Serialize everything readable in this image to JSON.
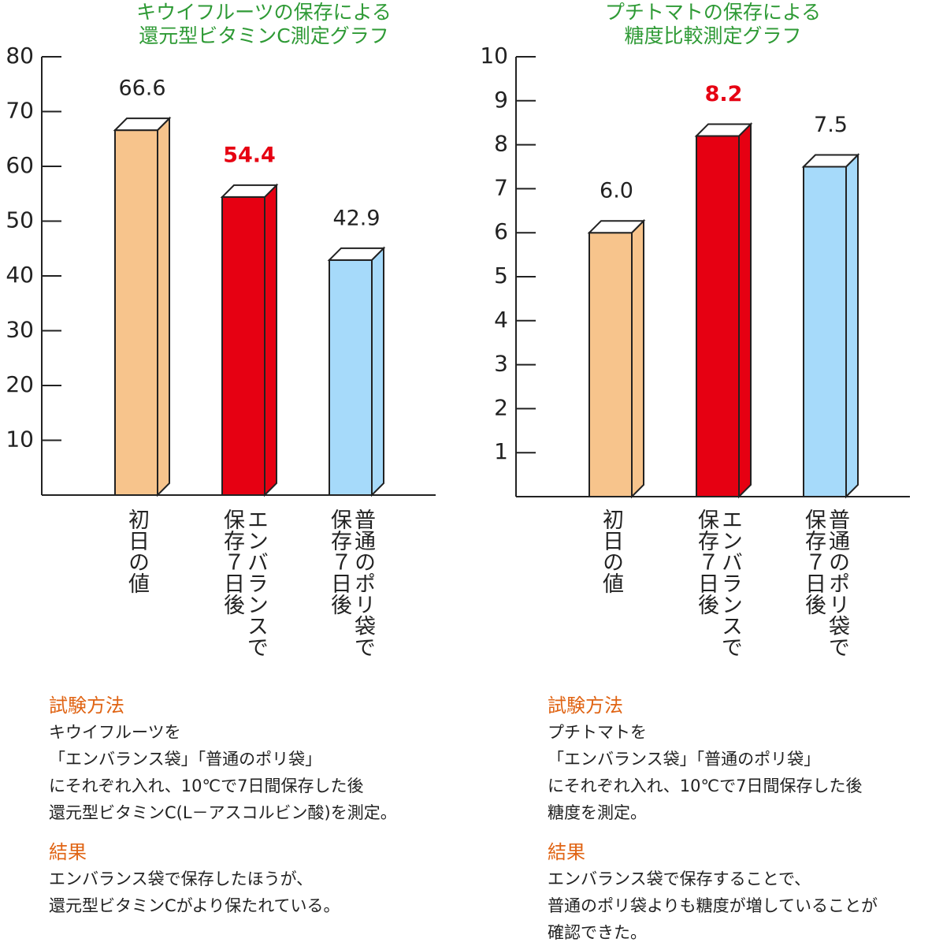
{
  "chart_data": [
    {
      "type": "bar",
      "title": [
        "キウイフルーツの保存による",
        "還元型ビタミンC測定グラフ"
      ],
      "categories": [
        "初日の値",
        "エンバランスで\n保存７日後",
        "普通のポリ袋で\n保存７日後"
      ],
      "values": [
        66.6,
        54.4,
        42.9
      ],
      "colors": [
        "#f7c48c",
        "#e60012",
        "#a6dafa"
      ],
      "ylim": [
        0,
        80
      ],
      "yticks": [
        10,
        20,
        30,
        40,
        50,
        60,
        70,
        80
      ]
    },
    {
      "type": "bar",
      "title": [
        "プチトマトの保存による",
        "糖度比較測定グラフ"
      ],
      "categories": [
        "初日の値",
        "エンバランスで\n保存７日後",
        "普通のポリ袋で\n保存７日後"
      ],
      "values": [
        6.0,
        8.2,
        7.5
      ],
      "value_labels": [
        "6.0",
        "8.2",
        "7.5"
      ],
      "colors": [
        "#f7c48c",
        "#e60012",
        "#a6dafa"
      ],
      "ylim": [
        0,
        10
      ],
      "yticks": [
        1,
        2,
        3,
        4,
        5,
        6,
        7,
        8,
        9,
        10
      ]
    }
  ],
  "panels": [
    {
      "sections": [
        {
          "heading": "試験方法",
          "lines": [
            "キウイフルーツを",
            "「エンバランス袋」「普通のポリ袋」",
            "にそれぞれ入れ、10℃で7日間保存した後",
            "還元型ビタミンC(L－アスコルビン酸)を測定。"
          ]
        },
        {
          "heading": "結果",
          "lines": [
            "エンバランス袋で保存したほうが、",
            "還元型ビタミンCがより保たれている。"
          ]
        }
      ]
    },
    {
      "sections": [
        {
          "heading": "試験方法",
          "lines": [
            "プチトマトを",
            "「エンバランス袋」「普通のポリ袋」",
            "にそれぞれ入れ、10℃で7日間保存した後",
            "糖度を測定。"
          ]
        },
        {
          "heading": "結果",
          "lines": [
            "エンバランス袋で保存することで、",
            "普通のポリ袋よりも糖度が増していることが",
            "確認できた。"
          ]
        }
      ]
    }
  ]
}
